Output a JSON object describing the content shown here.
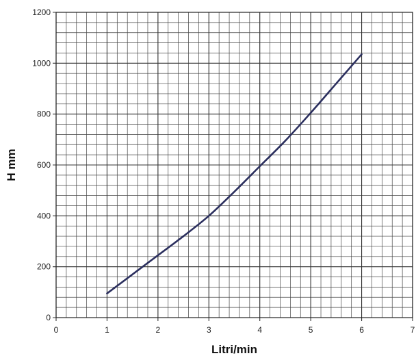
{
  "chart_data": {
    "type": "line",
    "title": "",
    "xlabel": "Litri/min",
    "ylabel": "H mm",
    "xlim": [
      0,
      7
    ],
    "ylim": [
      0,
      1200
    ],
    "x_ticks": [
      0,
      1,
      2,
      3,
      4,
      5,
      6,
      7
    ],
    "y_ticks": [
      0,
      200,
      400,
      600,
      800,
      1000,
      1200
    ],
    "x_minor_step": 0.2,
    "y_minor_step": 40,
    "grid": true,
    "line_color": "#2b2f5e",
    "grid_color": "#444444",
    "series": [
      {
        "x": [
          1,
          1.5,
          2,
          2.5,
          3,
          3.5,
          4,
          4.5,
          5,
          5.5,
          6
        ],
        "y": [
          95,
          170,
          245,
          320,
          400,
          495,
          595,
          695,
          805,
          920,
          1035
        ]
      }
    ]
  }
}
